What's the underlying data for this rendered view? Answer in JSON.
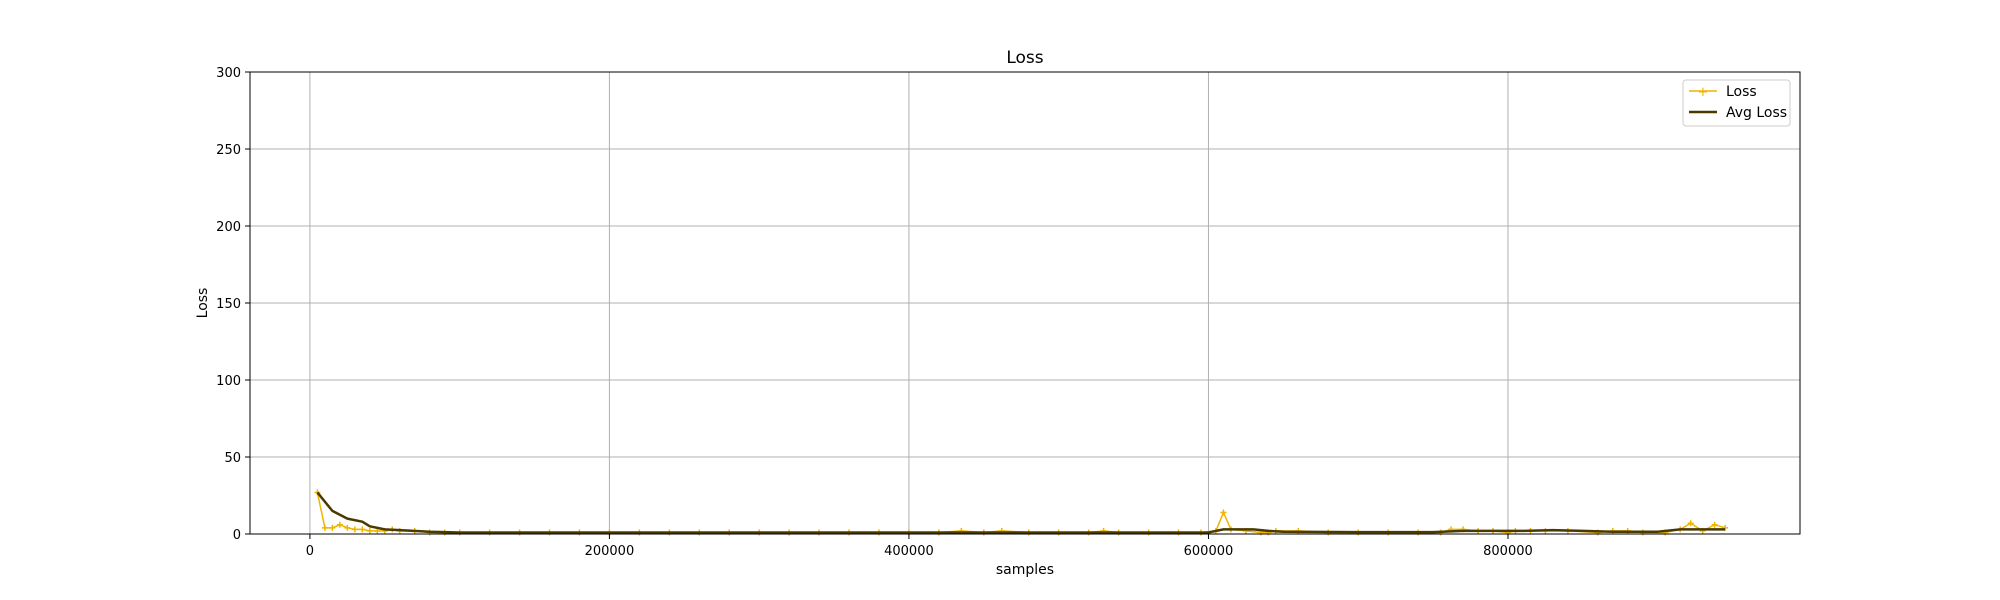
{
  "chart_data": {
    "type": "line",
    "title": "Loss",
    "xlabel": "samples",
    "ylabel": "Loss",
    "xlim": [
      -40000,
      995000
    ],
    "ylim": [
      0,
      300
    ],
    "xticks": [
      0,
      200000,
      400000,
      600000,
      800000
    ],
    "yticks": [
      0,
      50,
      100,
      150,
      200,
      250,
      300
    ],
    "xtick_labels": [
      "0",
      "200000",
      "400000",
      "600000",
      "800000"
    ],
    "ytick_labels": [
      "0",
      "50",
      "100",
      "150",
      "200",
      "250",
      "300"
    ],
    "grid": true,
    "legend_position": "top-right",
    "colors": {
      "loss": "#f0b400",
      "avg_loss": "#4b3a00"
    },
    "series": [
      {
        "name": "Loss",
        "marker": "plus",
        "x": [
          5000,
          10000,
          15000,
          20000,
          25000,
          30000,
          35000,
          40000,
          45000,
          50000,
          55000,
          60000,
          70000,
          80000,
          90000,
          100000,
          120000,
          140000,
          160000,
          180000,
          200000,
          220000,
          240000,
          260000,
          280000,
          300000,
          320000,
          340000,
          360000,
          380000,
          400000,
          420000,
          435000,
          450000,
          462000,
          480000,
          500000,
          520000,
          530000,
          540000,
          560000,
          580000,
          595000,
          605000,
          610000,
          615000,
          625000,
          635000,
          640000,
          645000,
          660000,
          680000,
          700000,
          720000,
          740000,
          755000,
          762000,
          770000,
          780000,
          790000,
          800000,
          805000,
          815000,
          825000,
          840000,
          860000,
          870000,
          880000,
          890000,
          905000,
          915000,
          922000,
          930000,
          938000,
          945000
        ],
        "values": [
          27,
          4,
          4,
          6,
          4,
          3,
          3,
          2,
          2,
          2,
          3,
          2,
          2,
          1,
          1,
          1,
          1,
          1,
          1,
          1,
          1,
          1,
          1,
          1,
          1,
          1,
          1,
          1,
          1,
          1,
          1,
          1,
          2,
          1,
          2,
          1,
          1,
          1,
          2,
          1,
          1,
          1,
          1,
          2,
          14,
          3,
          2,
          1,
          1,
          2,
          2,
          1,
          1,
          1,
          1,
          1,
          3,
          3,
          2,
          2,
          1,
          2,
          2,
          2,
          2,
          1,
          2,
          2,
          1,
          1,
          3,
          7,
          2,
          6,
          4
        ]
      },
      {
        "name": "Avg Loss",
        "marker": "none",
        "x": [
          5000,
          15000,
          25000,
          35000,
          40000,
          50000,
          60000,
          80000,
          100000,
          150000,
          200000,
          300000,
          400000,
          500000,
          600000,
          610000,
          620000,
          630000,
          640000,
          650000,
          700000,
          750000,
          770000,
          790000,
          810000,
          830000,
          850000,
          870000,
          900000,
          915000,
          925000,
          935000,
          945000
        ],
        "values": [
          27,
          15,
          10,
          8,
          5,
          3,
          2.5,
          1.5,
          1,
          1,
          1,
          1,
          1,
          1,
          1,
          3,
          3,
          3,
          2,
          1.5,
          1.2,
          1.2,
          2,
          2,
          2,
          2.5,
          2,
          1.5,
          1.5,
          3,
          3,
          3,
          3
        ]
      }
    ]
  }
}
